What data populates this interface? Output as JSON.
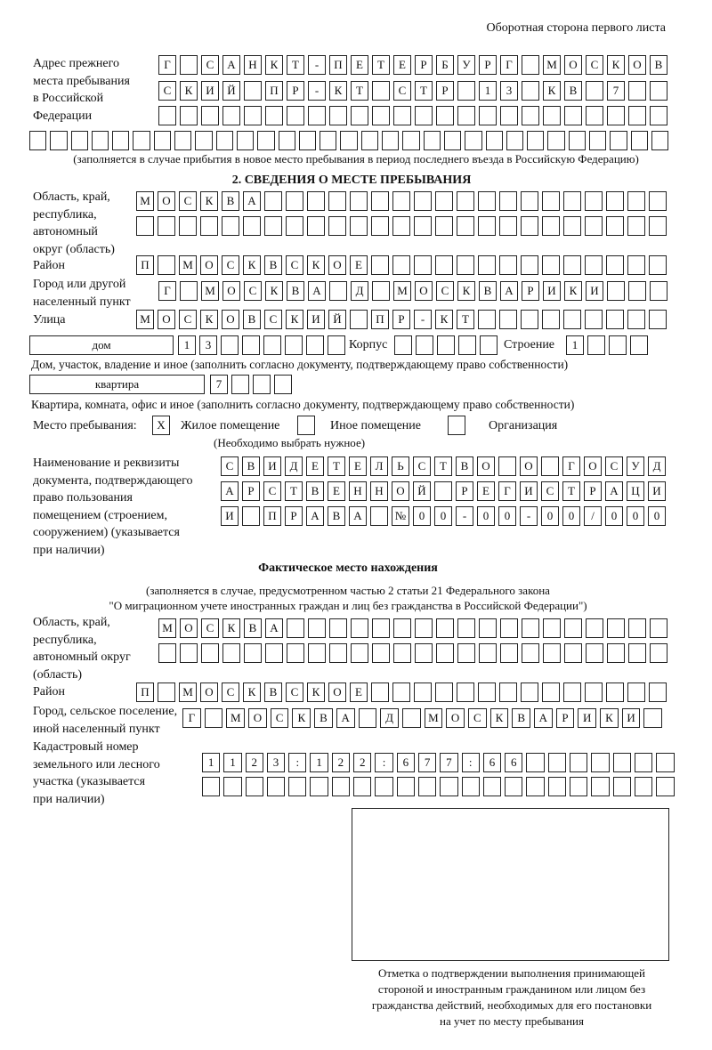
{
  "header": "Оборотная сторона первого листа",
  "prev": {
    "label": [
      "Адрес прежнего",
      "места пребывания",
      "в Российской",
      "Федерации"
    ],
    "rows": [
      [
        "Г",
        "",
        "С",
        "А",
        "Н",
        "К",
        "Т",
        "-",
        "П",
        "Е",
        "Т",
        "Е",
        "Р",
        "Б",
        "У",
        "Р",
        "Г",
        "",
        "М",
        "О",
        "С",
        "К",
        "О",
        "В"
      ],
      [
        "С",
        "К",
        "И",
        "Й",
        "",
        "П",
        "Р",
        "-",
        "К",
        "Т",
        "",
        "С",
        "Т",
        "Р",
        "",
        "1",
        "3",
        "",
        "К",
        "В",
        "",
        "7",
        "",
        ""
      ],
      [
        "",
        "",
        "",
        "",
        "",
        "",
        "",
        "",
        "",
        "",
        "",
        "",
        "",
        "",
        "",
        "",
        "",
        "",
        "",
        "",
        "",
        "",
        "",
        ""
      ],
      [
        "",
        "",
        "",
        "",
        "",
        "",
        "",
        "",
        "",
        "",
        "",
        "",
        "",
        "",
        "",
        "",
        "",
        "",
        "",
        "",
        "",
        "",
        "",
        "",
        "",
        "",
        "",
        "",
        "",
        "",
        ""
      ]
    ],
    "note": "(заполняется в случае прибытия в новое место пребывания в период последнего въезда в Российскую Федерацию)"
  },
  "section2": {
    "title": "2. СВЕДЕНИЯ О МЕСТЕ ПРЕБЫВАНИЯ",
    "oblast_label": [
      "Область, край,",
      "республика,",
      "автономный",
      "округ (область)"
    ],
    "oblast_rows": [
      [
        "М",
        "О",
        "С",
        "К",
        "В",
        "А",
        "",
        "",
        "",
        "",
        "",
        "",
        "",
        "",
        "",
        "",
        "",
        "",
        "",
        "",
        "",
        "",
        "",
        "",
        ""
      ],
      [
        "",
        "",
        "",
        "",
        "",
        "",
        "",
        "",
        "",
        "",
        "",
        "",
        "",
        "",
        "",
        "",
        "",
        "",
        "",
        "",
        "",
        "",
        "",
        "",
        ""
      ]
    ],
    "raion_label": "Район",
    "raion": [
      "П",
      "",
      "М",
      "О",
      "С",
      "К",
      "В",
      "С",
      "К",
      "О",
      "Е",
      "",
      "",
      "",
      "",
      "",
      "",
      "",
      "",
      "",
      "",
      "",
      "",
      "",
      ""
    ],
    "gorod_label": [
      "Город или другой",
      "населенный пункт"
    ],
    "gorod": [
      "Г",
      "",
      "М",
      "О",
      "С",
      "К",
      "В",
      "А",
      "",
      "Д",
      "",
      "М",
      "О",
      "С",
      "К",
      "В",
      "А",
      "Р",
      "И",
      "К",
      "И",
      "",
      "",
      ""
    ],
    "ulica_label": "Улица",
    "ulica": [
      "М",
      "О",
      "С",
      "К",
      "О",
      "В",
      "С",
      "К",
      "И",
      "Й",
      "",
      "П",
      "Р",
      "-",
      "К",
      "Т",
      "",
      "",
      "",
      "",
      "",
      "",
      "",
      "",
      ""
    ],
    "dom_type": "дом",
    "dom": [
      "1",
      "3",
      "",
      "",
      "",
      "",
      "",
      ""
    ],
    "korpus_label": "Корпус",
    "korpus": [
      "",
      "",
      "",
      "",
      ""
    ],
    "stroenie_label": "Строение",
    "stroenie": [
      "1",
      "",
      "",
      ""
    ],
    "dom_note": "Дом, участок, владение и иное (заполнить согласно документу, подтверждающему право собственности)",
    "kv_type": "квартира",
    "kv": [
      "7",
      "",
      "",
      ""
    ],
    "kv_note": "Квартира, комната, офис и иное (заполнить согласно документу, подтверждающему право собственности)",
    "mesto_label": "Место пребывания:",
    "options": [
      {
        "label": "Жилое помещение",
        "mark": "X"
      },
      {
        "label": "Иное помещение",
        "mark": ""
      },
      {
        "label": "Организация",
        "mark": ""
      }
    ],
    "choose_note": "(Необходимо выбрать нужное)",
    "doc_label": [
      "Наименование и реквизиты",
      "документа, подтверждающего",
      "право пользования",
      "помещением (строением,",
      "сооружением) (указывается",
      "при наличии)"
    ],
    "doc_rows": [
      [
        "С",
        "В",
        "И",
        "Д",
        "Е",
        "Т",
        "Е",
        "Л",
        "Ь",
        "С",
        "Т",
        "В",
        "О",
        "",
        "О",
        "",
        "Г",
        "О",
        "С",
        "У",
        "Д"
      ],
      [
        "А",
        "Р",
        "С",
        "Т",
        "В",
        "Е",
        "Н",
        "Н",
        "О",
        "Й",
        "",
        "Р",
        "Е",
        "Г",
        "И",
        "С",
        "Т",
        "Р",
        "А",
        "Ц",
        "И"
      ],
      [
        "И",
        "",
        "П",
        "Р",
        "А",
        "В",
        "А",
        "",
        "№",
        "0",
        "0",
        "-",
        "0",
        "0",
        "-",
        "0",
        "0",
        "/",
        "0",
        "0",
        "0"
      ]
    ]
  },
  "actual": {
    "title": "Фактическое место нахождения",
    "note1": "(заполняется в случае, предусмотренном частью 2 статьи 21 Федерального закона",
    "note2": "\"О миграционном учете иностранных граждан и лиц без гражданства в Российской Федерации\")",
    "oblast_label": [
      "Область, край,",
      "республика,",
      "автономный округ",
      "(область)"
    ],
    "oblast_rows": [
      [
        "М",
        "О",
        "С",
        "К",
        "В",
        "А",
        "",
        "",
        "",
        "",
        "",
        "",
        "",
        "",
        "",
        "",
        "",
        "",
        "",
        "",
        "",
        "",
        "",
        ""
      ],
      [
        "",
        "",
        "",
        "",
        "",
        "",
        "",
        "",
        "",
        "",
        "",
        "",
        "",
        "",
        "",
        "",
        "",
        "",
        "",
        "",
        "",
        "",
        "",
        ""
      ]
    ],
    "raion_label": "Район",
    "raion": [
      "П",
      "",
      "М",
      "О",
      "С",
      "К",
      "В",
      "С",
      "К",
      "О",
      "Е",
      "",
      "",
      "",
      "",
      "",
      "",
      "",
      "",
      "",
      "",
      "",
      "",
      "",
      ""
    ],
    "gorod_label": [
      "Город, сельское поселение,",
      "иной населенный пункт"
    ],
    "gorod": [
      "Г",
      "",
      "М",
      "О",
      "С",
      "К",
      "В",
      "А",
      "",
      "Д",
      "",
      "М",
      "О",
      "С",
      "К",
      "В",
      "А",
      "Р",
      "И",
      "К",
      "И",
      ""
    ],
    "kadastr_label": [
      "Кадастровый номер",
      "земельного или лесного",
      "участка (указывается",
      "при наличии)"
    ],
    "kadastr_rows": [
      [
        "1",
        "1",
        "2",
        "3",
        ":",
        "1",
        "2",
        "2",
        ":",
        "6",
        "7",
        "7",
        ":",
        "6",
        "6",
        "",
        "",
        "",
        "",
        "",
        "",
        ""
      ],
      [
        "",
        "",
        "",
        "",
        "",
        "",
        "",
        "",
        "",
        "",
        "",
        "",
        "",
        "",
        "",
        "",
        "",
        "",
        "",
        "",
        "",
        ""
      ]
    ]
  },
  "stamp_caption": [
    "Отметка о подтверждении выполнения принимающей",
    "стороной и иностранным гражданином или лицом без",
    "гражданства действий, необходимых для его постановки",
    "на учет по месту пребывания"
  ]
}
